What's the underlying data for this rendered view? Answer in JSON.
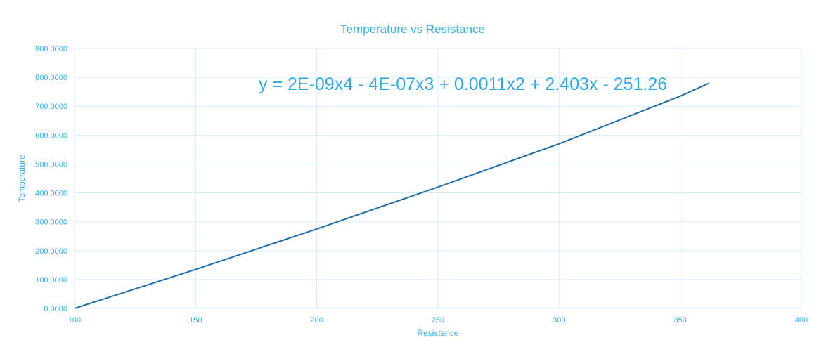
{
  "chart_data": {
    "type": "line",
    "title": "Temperature vs Resistance",
    "xlabel": "Resistance",
    "ylabel": "Temperature",
    "xlim": [
      100,
      400
    ],
    "ylim": [
      0,
      900
    ],
    "x_ticks": [
      100,
      150,
      200,
      250,
      300,
      350,
      400
    ],
    "y_ticks": [
      "0.0000",
      "100.0000",
      "200.0000",
      "300.0000",
      "400.0000",
      "500.0000",
      "600.0000",
      "700.0000",
      "800.0000",
      "900.0000"
    ],
    "grid": true,
    "series": [
      {
        "name": "Temperature",
        "color": "#1f6fa8",
        "x": [
          100,
          150,
          200,
          250,
          300,
          350,
          362
        ],
        "y": [
          0,
          135,
          275,
          420,
          570,
          735,
          780
        ]
      }
    ],
    "annotations": [
      {
        "text": "y = 2E-09x4 - 4E-07x3 + 0.0011x2 + 2.403x - 251.26"
      }
    ]
  }
}
